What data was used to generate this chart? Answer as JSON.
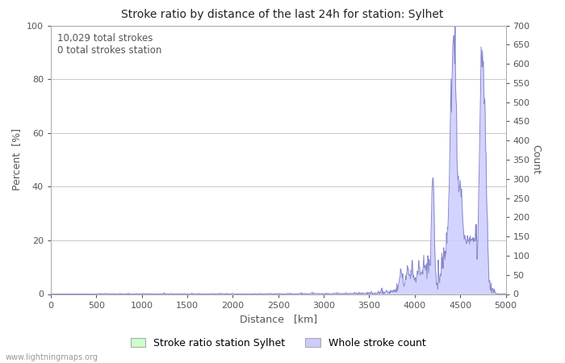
{
  "title": "Stroke ratio by distance of the last 24h for station: Sylhet",
  "xlabel": "Distance   [km]",
  "ylabel_left": "Percent  [%]",
  "ylabel_right": "Count",
  "annotation_line1": "10,029 total strokes",
  "annotation_line2": "0 total strokes station",
  "xlim": [
    0,
    5000
  ],
  "ylim_left": [
    0,
    100
  ],
  "ylim_right": [
    0,
    700
  ],
  "xticks": [
    0,
    500,
    1000,
    1500,
    2000,
    2500,
    3000,
    3500,
    4000,
    4500,
    5000
  ],
  "yticks_left": [
    0,
    20,
    40,
    60,
    80,
    100
  ],
  "yticks_right": [
    0,
    50,
    100,
    150,
    200,
    250,
    300,
    350,
    400,
    450,
    500,
    550,
    600,
    650,
    700
  ],
  "background_color": "#ffffff",
  "plot_bg_color": "#ffffff",
  "grid_color": "#cccccc",
  "line_color": "#8888cc",
  "fill_color_stroke": "#ccccff",
  "fill_color_ratio": "#ccffcc",
  "watermark": "www.lightningmaps.org",
  "legend_label_ratio": "Stroke ratio station Sylhet",
  "legend_label_count": "Whole stroke count"
}
